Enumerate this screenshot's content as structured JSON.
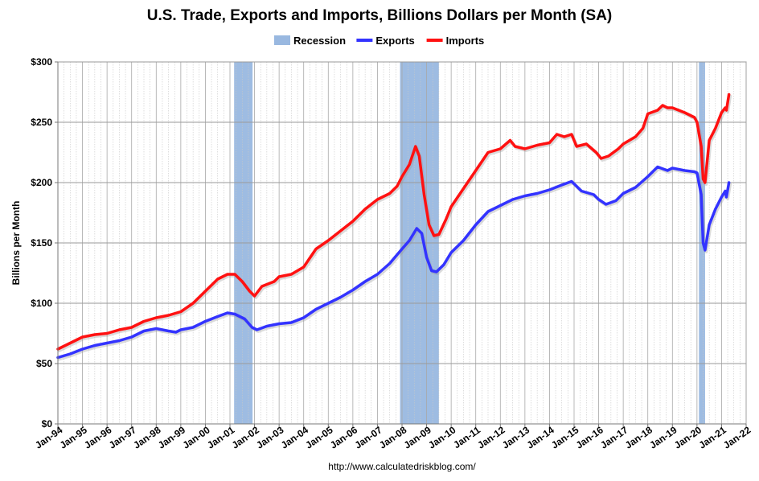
{
  "chart_data": {
    "type": "line",
    "title": "U.S. Trade, Exports and Imports, Billions Dollars per Month (SA)",
    "ylabel": "Billions per Month",
    "xlabel": "",
    "source": "http://www.calculatedriskblog.com/",
    "ylim": [
      0,
      300
    ],
    "y_ticks": [
      0,
      50,
      100,
      150,
      200,
      250,
      300
    ],
    "y_tick_labels": [
      "$0",
      "$50",
      "$100",
      "$150",
      "$200",
      "$250",
      "$300"
    ],
    "x_range": [
      1994.0,
      2022.0
    ],
    "x_ticks": [
      1994,
      1995,
      1996,
      1997,
      1998,
      1999,
      2000,
      2001,
      2002,
      2003,
      2004,
      2005,
      2006,
      2007,
      2008,
      2009,
      2010,
      2011,
      2012,
      2013,
      2014,
      2015,
      2016,
      2017,
      2018,
      2019,
      2020,
      2021,
      2022
    ],
    "x_tick_labels": [
      "Jan-94",
      "Jan-95",
      "Jan-96",
      "Jan-97",
      "Jan-98",
      "Jan-99",
      "Jan-00",
      "Jan-01",
      "Jan-02",
      "Jan-03",
      "Jan-04",
      "Jan-05",
      "Jan-06",
      "Jan-07",
      "Jan-08",
      "Jan-09",
      "Jan-10",
      "Jan-11",
      "Jan-12",
      "Jan-13",
      "Jan-14",
      "Jan-15",
      "Jan-16",
      "Jan-17",
      "Jan-18",
      "Jan-19",
      "Jan-20",
      "Jan-21",
      "Jan-22"
    ],
    "grid": true,
    "legend_placement": "top-center",
    "recessions": [
      [
        2001.17,
        2001.92
      ],
      [
        2007.92,
        2009.5
      ],
      [
        2020.08,
        2020.33
      ]
    ],
    "series": [
      {
        "name": "Recession",
        "color": "#99b8e0",
        "kind": "band"
      },
      {
        "name": "Exports",
        "color": "#3333ff",
        "points": [
          [
            1994.0,
            55
          ],
          [
            1994.5,
            58
          ],
          [
            1995.0,
            62
          ],
          [
            1995.5,
            65
          ],
          [
            1996.0,
            67
          ],
          [
            1996.5,
            69
          ],
          [
            1997.0,
            72
          ],
          [
            1997.5,
            77
          ],
          [
            1998.0,
            79
          ],
          [
            1998.5,
            77
          ],
          [
            1998.8,
            76
          ],
          [
            1999.0,
            78
          ],
          [
            1999.5,
            80
          ],
          [
            2000.0,
            85
          ],
          [
            2000.5,
            89
          ],
          [
            2000.9,
            92
          ],
          [
            2001.2,
            91
          ],
          [
            2001.6,
            87
          ],
          [
            2001.9,
            80
          ],
          [
            2002.1,
            78
          ],
          [
            2002.5,
            81
          ],
          [
            2003.0,
            83
          ],
          [
            2003.5,
            84
          ],
          [
            2004.0,
            88
          ],
          [
            2004.5,
            95
          ],
          [
            2005.0,
            100
          ],
          [
            2005.5,
            105
          ],
          [
            2006.0,
            111
          ],
          [
            2006.5,
            118
          ],
          [
            2007.0,
            124
          ],
          [
            2007.5,
            133
          ],
          [
            2008.0,
            145
          ],
          [
            2008.3,
            152
          ],
          [
            2008.6,
            162
          ],
          [
            2008.8,
            158
          ],
          [
            2009.0,
            138
          ],
          [
            2009.2,
            127
          ],
          [
            2009.4,
            126
          ],
          [
            2009.7,
            132
          ],
          [
            2010.0,
            142
          ],
          [
            2010.5,
            152
          ],
          [
            2011.0,
            165
          ],
          [
            2011.5,
            176
          ],
          [
            2012.0,
            181
          ],
          [
            2012.5,
            186
          ],
          [
            2013.0,
            189
          ],
          [
            2013.5,
            191
          ],
          [
            2014.0,
            194
          ],
          [
            2014.5,
            198
          ],
          [
            2014.9,
            201
          ],
          [
            2015.3,
            193
          ],
          [
            2015.8,
            190
          ],
          [
            2016.0,
            186
          ],
          [
            2016.3,
            182
          ],
          [
            2016.7,
            185
          ],
          [
            2017.0,
            191
          ],
          [
            2017.5,
            196
          ],
          [
            2018.0,
            205
          ],
          [
            2018.4,
            213
          ],
          [
            2018.8,
            210
          ],
          [
            2019.0,
            212
          ],
          [
            2019.5,
            210
          ],
          [
            2019.9,
            209
          ],
          [
            2020.0,
            208
          ],
          [
            2020.17,
            190
          ],
          [
            2020.25,
            150
          ],
          [
            2020.33,
            144
          ],
          [
            2020.5,
            165
          ],
          [
            2020.75,
            178
          ],
          [
            2021.0,
            188
          ],
          [
            2021.15,
            193
          ],
          [
            2021.2,
            188
          ],
          [
            2021.3,
            200
          ]
        ]
      },
      {
        "name": "Imports",
        "color": "#ff1111",
        "points": [
          [
            1994.0,
            62
          ],
          [
            1994.5,
            67
          ],
          [
            1995.0,
            72
          ],
          [
            1995.5,
            74
          ],
          [
            1996.0,
            75
          ],
          [
            1996.5,
            78
          ],
          [
            1997.0,
            80
          ],
          [
            1997.5,
            85
          ],
          [
            1998.0,
            88
          ],
          [
            1998.5,
            90
          ],
          [
            1999.0,
            93
          ],
          [
            1999.5,
            100
          ],
          [
            2000.0,
            110
          ],
          [
            2000.5,
            120
          ],
          [
            2000.9,
            124
          ],
          [
            2001.2,
            124
          ],
          [
            2001.5,
            118
          ],
          [
            2001.8,
            110
          ],
          [
            2002.0,
            106
          ],
          [
            2002.3,
            114
          ],
          [
            2002.8,
            118
          ],
          [
            2003.0,
            122
          ],
          [
            2003.5,
            124
          ],
          [
            2004.0,
            130
          ],
          [
            2004.5,
            145
          ],
          [
            2005.0,
            152
          ],
          [
            2005.5,
            160
          ],
          [
            2006.0,
            168
          ],
          [
            2006.5,
            178
          ],
          [
            2007.0,
            186
          ],
          [
            2007.5,
            191
          ],
          [
            2007.8,
            197
          ],
          [
            2008.0,
            205
          ],
          [
            2008.3,
            215
          ],
          [
            2008.55,
            230
          ],
          [
            2008.7,
            222
          ],
          [
            2008.9,
            190
          ],
          [
            2009.1,
            165
          ],
          [
            2009.3,
            156
          ],
          [
            2009.5,
            157
          ],
          [
            2009.8,
            170
          ],
          [
            2010.0,
            180
          ],
          [
            2010.5,
            195
          ],
          [
            2011.0,
            210
          ],
          [
            2011.5,
            225
          ],
          [
            2012.0,
            228
          ],
          [
            2012.4,
            235
          ],
          [
            2012.6,
            230
          ],
          [
            2013.0,
            228
          ],
          [
            2013.5,
            231
          ],
          [
            2014.0,
            233
          ],
          [
            2014.3,
            240
          ],
          [
            2014.6,
            238
          ],
          [
            2014.9,
            240
          ],
          [
            2015.1,
            230
          ],
          [
            2015.5,
            232
          ],
          [
            2015.9,
            225
          ],
          [
            2016.1,
            220
          ],
          [
            2016.4,
            222
          ],
          [
            2016.8,
            228
          ],
          [
            2017.0,
            232
          ],
          [
            2017.5,
            238
          ],
          [
            2017.8,
            245
          ],
          [
            2018.0,
            257
          ],
          [
            2018.4,
            260
          ],
          [
            2018.6,
            264
          ],
          [
            2018.8,
            262
          ],
          [
            2019.0,
            262
          ],
          [
            2019.5,
            258
          ],
          [
            2019.9,
            254
          ],
          [
            2020.0,
            250
          ],
          [
            2020.17,
            230
          ],
          [
            2020.25,
            203
          ],
          [
            2020.33,
            200
          ],
          [
            2020.5,
            235
          ],
          [
            2020.75,
            245
          ],
          [
            2021.0,
            258
          ],
          [
            2021.15,
            262
          ],
          [
            2021.2,
            260
          ],
          [
            2021.3,
            273
          ]
        ]
      }
    ]
  }
}
